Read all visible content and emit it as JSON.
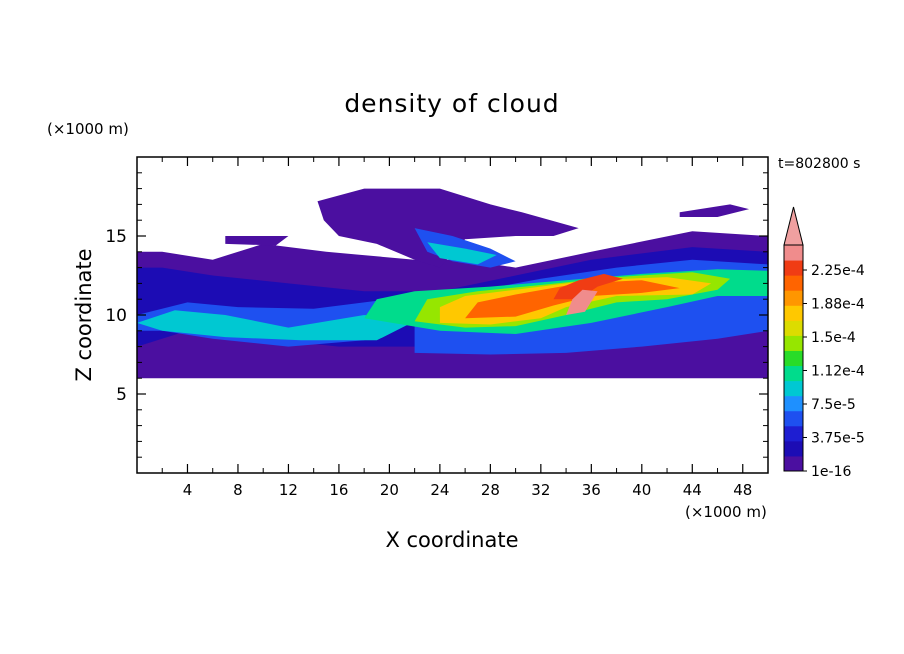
{
  "chart_data": {
    "type": "heatmap",
    "title": "density of cloud",
    "xlabel": "X coordinate",
    "ylabel": "Z coordinate",
    "x_unit": "(×1000 m)",
    "y_unit": "(×1000 m)",
    "time_label": "t=802800 s",
    "xlim": [
      0,
      50
    ],
    "ylim": [
      0,
      20
    ],
    "x_ticks": [
      4,
      8,
      12,
      16,
      20,
      24,
      28,
      32,
      36,
      40,
      44,
      48
    ],
    "y_ticks": [
      5,
      10,
      15
    ],
    "colorbar": {
      "labels": [
        "2.25e-4",
        "1.88e-4",
        "1.5e-4",
        "1.12e-4",
        "7.5e-5",
        "3.75e-5",
        "1e-16"
      ],
      "colors": [
        "#4b0fa0",
        "#1c0cb4",
        "#1e1ed2",
        "#1e50f0",
        "#1e90ff",
        "#00c8d2",
        "#00dc8c",
        "#28dc28",
        "#96e600",
        "#dcdc00",
        "#ffc800",
        "#ff9600",
        "#ff6400",
        "#f03c14",
        "#f08c8c"
      ],
      "extend_color": "#f0a0a0"
    },
    "cloud_regions": [
      {
        "level": 0,
        "poly": [
          [
            0,
            6
          ],
          [
            50,
            6
          ],
          [
            50,
            15
          ],
          [
            44,
            15.3
          ],
          [
            36,
            14
          ],
          [
            30,
            13
          ],
          [
            26,
            13.5
          ],
          [
            22,
            13.5
          ],
          [
            15,
            14
          ],
          [
            10,
            14.5
          ],
          [
            6,
            13.5
          ],
          [
            2,
            14
          ],
          [
            0,
            14
          ]
        ]
      },
      {
        "level": 0,
        "poly": [
          [
            14.3,
            17.2
          ],
          [
            18,
            18
          ],
          [
            24,
            18
          ],
          [
            28,
            17
          ],
          [
            30.5,
            16.5
          ],
          [
            35,
            15.5
          ],
          [
            33,
            15
          ],
          [
            30,
            15
          ],
          [
            26,
            14.8
          ],
          [
            24,
            13
          ],
          [
            22,
            13.5
          ],
          [
            19,
            14.5
          ],
          [
            16,
            15
          ],
          [
            14.8,
            16
          ]
        ]
      },
      {
        "level": 0,
        "poly": [
          [
            43,
            16.5
          ],
          [
            47,
            17
          ],
          [
            48.5,
            16.7
          ],
          [
            46,
            16.2
          ],
          [
            43,
            16.2
          ]
        ]
      },
      {
        "level": 0,
        "poly": [
          [
            7,
            15
          ],
          [
            12,
            15
          ],
          [
            11,
            14.4
          ],
          [
            7,
            14.5
          ]
        ]
      },
      {
        "level": 1,
        "poly": [
          [
            0,
            8
          ],
          [
            4,
            9
          ],
          [
            10,
            8.5
          ],
          [
            16,
            8
          ],
          [
            22,
            8
          ],
          [
            28,
            8
          ],
          [
            34,
            8.2
          ],
          [
            40,
            8.5
          ],
          [
            46,
            9
          ],
          [
            50,
            9.5
          ],
          [
            50,
            14
          ],
          [
            44,
            14.3
          ],
          [
            36,
            13.5
          ],
          [
            30,
            12.5
          ],
          [
            24,
            11.5
          ],
          [
            18,
            11.5
          ],
          [
            12,
            12
          ],
          [
            6,
            12.5
          ],
          [
            2,
            13
          ],
          [
            0,
            13
          ]
        ]
      },
      {
        "level": 3,
        "poly": [
          [
            22,
            7.6
          ],
          [
            28,
            7.5
          ],
          [
            34,
            7.6
          ],
          [
            40,
            8
          ],
          [
            46,
            8.5
          ],
          [
            50,
            9
          ],
          [
            50,
            13.2
          ],
          [
            44,
            13.5
          ],
          [
            38,
            13
          ],
          [
            32,
            12.3
          ],
          [
            26,
            11.4
          ],
          [
            22,
            10.2
          ]
        ]
      },
      {
        "level": 3,
        "poly": [
          [
            0,
            10
          ],
          [
            4,
            10.8
          ],
          [
            8,
            10.5
          ],
          [
            14,
            10.4
          ],
          [
            20,
            11
          ],
          [
            22,
            11
          ],
          [
            18,
            8.4
          ],
          [
            12,
            8
          ],
          [
            6,
            8.5
          ],
          [
            2,
            9
          ],
          [
            0,
            9
          ]
        ]
      },
      {
        "level": 3,
        "poly": [
          [
            22,
            15.5
          ],
          [
            25,
            15
          ],
          [
            28,
            14.2
          ],
          [
            30,
            13.4
          ],
          [
            28,
            13
          ],
          [
            25,
            13.4
          ],
          [
            23,
            14
          ]
        ]
      },
      {
        "level": 5,
        "poly": [
          [
            0,
            9.5
          ],
          [
            3,
            10.3
          ],
          [
            7,
            10
          ],
          [
            12,
            9.2
          ],
          [
            18,
            10
          ],
          [
            22,
            9.6
          ],
          [
            19,
            8.4
          ],
          [
            13,
            8.4
          ],
          [
            7,
            8.6
          ],
          [
            2,
            9
          ]
        ]
      },
      {
        "level": 5,
        "poly": [
          [
            23,
            14.6
          ],
          [
            26,
            14.2
          ],
          [
            28.5,
            13.8
          ],
          [
            27,
            13.2
          ],
          [
            24,
            13.6
          ]
        ]
      },
      {
        "level": 6,
        "poly": [
          [
            18,
            9.8
          ],
          [
            24,
            9
          ],
          [
            30,
            8.8
          ],
          [
            36,
            9.5
          ],
          [
            42,
            10.5
          ],
          [
            46,
            11.2
          ],
          [
            48,
            11.2
          ],
          [
            50,
            11.2
          ],
          [
            50,
            12.8
          ],
          [
            46,
            12.9
          ],
          [
            40,
            12.6
          ],
          [
            34,
            12.2
          ],
          [
            28,
            11.8
          ],
          [
            22,
            11.5
          ],
          [
            19,
            11
          ]
        ]
      },
      {
        "level": 8,
        "poly": [
          [
            22,
            9.6
          ],
          [
            26,
            9.2
          ],
          [
            30,
            9.3
          ],
          [
            34,
            10
          ],
          [
            38,
            10.8
          ],
          [
            42,
            11
          ],
          [
            46,
            11.6
          ],
          [
            47,
            12.3
          ],
          [
            44,
            12.7
          ],
          [
            38,
            12.4
          ],
          [
            32,
            11.9
          ],
          [
            27,
            11.5
          ],
          [
            23,
            11
          ]
        ]
      },
      {
        "level": 10,
        "poly": [
          [
            24,
            9.5
          ],
          [
            28,
            9.4
          ],
          [
            32,
            9.8
          ],
          [
            34,
            10.5
          ],
          [
            38,
            11.2
          ],
          [
            44,
            11.3
          ],
          [
            45.5,
            12
          ],
          [
            42,
            12.4
          ],
          [
            36,
            12.2
          ],
          [
            30,
            11.6
          ],
          [
            26,
            11.2
          ],
          [
            24,
            10.5
          ]
        ]
      },
      {
        "level": 12,
        "poly": [
          [
            26,
            9.8
          ],
          [
            30,
            9.9
          ],
          [
            33,
            10.6
          ],
          [
            36,
            11.2
          ],
          [
            40,
            11.4
          ],
          [
            43,
            11.7
          ],
          [
            40,
            12.2
          ],
          [
            35,
            12
          ],
          [
            30,
            11.3
          ],
          [
            27,
            10.8
          ]
        ]
      },
      {
        "level": 13,
        "poly": [
          [
            33,
            11
          ],
          [
            35,
            11
          ],
          [
            36.5,
            11.8
          ],
          [
            38.5,
            12.3
          ],
          [
            37,
            12.6
          ],
          [
            35,
            12.2
          ],
          [
            33.5,
            11.7
          ]
        ]
      },
      {
        "level": 14,
        "poly": [
          [
            34,
            10
          ],
          [
            35.5,
            10.2
          ],
          [
            36.5,
            11.5
          ],
          [
            35.3,
            11.6
          ],
          [
            34.5,
            11
          ]
        ]
      }
    ]
  }
}
